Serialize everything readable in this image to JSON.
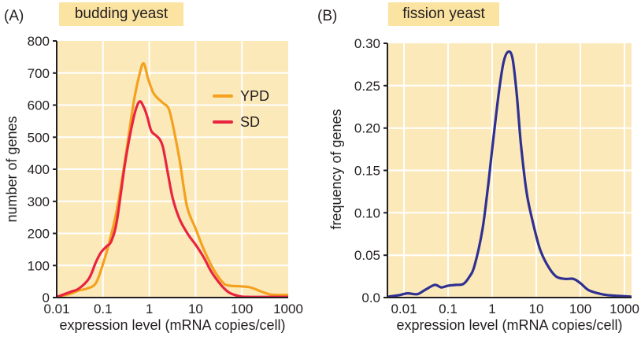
{
  "figure": {
    "panels": [
      {
        "letter": "(A)",
        "title": "budding yeast",
        "ylabel": "number of genes",
        "xlabel": "expression level (mRNA copies/cell)",
        "ytick_labels": [
          "800",
          "700",
          "600",
          "500",
          "400",
          "300",
          "200",
          "100",
          "0"
        ],
        "xtick_labels": [
          "0.01",
          "0.1",
          "1",
          "10",
          "100",
          "1000"
        ],
        "legend": [
          {
            "label": "YPD",
            "color": "#f4a11f"
          },
          {
            "label": "SD",
            "color": "#e82540"
          }
        ]
      },
      {
        "letter": "(B)",
        "title": "fission yeast",
        "ylabel": "frequency of genes",
        "xlabel": "expression level (mRNA copies/cell)",
        "ytick_labels": [
          "0.30",
          "0.25",
          "0.20",
          "0.15",
          "0.10",
          "0.05",
          "0.0"
        ],
        "xtick_labels": [
          "0.01",
          "0.1",
          "1",
          "10",
          "100",
          "1000"
        ]
      }
    ]
  },
  "colors": {
    "plot_bg": "#fce9ba",
    "title_bg": "#fbe3a1",
    "grid": "#ffffff",
    "axis": "#231f20",
    "text": "#231f20",
    "ypd": "#f4a11f",
    "sd": "#e82540",
    "fission": "#2f3192"
  },
  "chart_data": [
    {
      "type": "line",
      "title": "budding yeast",
      "xlabel": "expression level (mRNA copies/cell)",
      "ylabel": "number of genes",
      "x_scale": "log",
      "xlim": [
        0.01,
        1000
      ],
      "ylim": [
        0,
        800
      ],
      "yticks": [
        0,
        100,
        200,
        300,
        400,
        500,
        600,
        700,
        800
      ],
      "xticks": [
        0.01,
        0.1,
        1,
        10,
        100,
        1000
      ],
      "grid": true,
      "legend_position": "upper right",
      "series": [
        {
          "name": "YPD",
          "color": "#f4a11f",
          "points": [
            [
              0.01,
              2
            ],
            [
              0.02,
              12
            ],
            [
              0.03,
              22
            ],
            [
              0.045,
              28
            ],
            [
              0.07,
              45
            ],
            [
              0.1,
              105
            ],
            [
              0.14,
              178
            ],
            [
              0.2,
              275
            ],
            [
              0.3,
              430
            ],
            [
              0.45,
              600
            ],
            [
              0.6,
              690
            ],
            [
              0.75,
              730
            ],
            [
              0.95,
              680
            ],
            [
              1.2,
              640
            ],
            [
              1.5,
              622
            ],
            [
              2,
              606
            ],
            [
              2.6,
              590
            ],
            [
              3.2,
              540
            ],
            [
              4.5,
              430
            ],
            [
              6.5,
              285
            ],
            [
              10,
              215
            ],
            [
              15,
              150
            ],
            [
              25,
              85
            ],
            [
              40,
              45
            ],
            [
              55,
              37
            ],
            [
              90,
              35
            ],
            [
              150,
              32
            ],
            [
              250,
              20
            ],
            [
              400,
              10
            ],
            [
              600,
              8
            ],
            [
              1000,
              8
            ]
          ]
        },
        {
          "name": "SD",
          "color": "#e82540",
          "points": [
            [
              0.01,
              2
            ],
            [
              0.02,
              18
            ],
            [
              0.03,
              28
            ],
            [
              0.05,
              60
            ],
            [
              0.07,
              110
            ],
            [
              0.09,
              140
            ],
            [
              0.12,
              160
            ],
            [
              0.15,
              175
            ],
            [
              0.2,
              240
            ],
            [
              0.3,
              420
            ],
            [
              0.45,
              555
            ],
            [
              0.6,
              610
            ],
            [
              0.75,
              595
            ],
            [
              0.9,
              565
            ],
            [
              1.1,
              520
            ],
            [
              1.4,
              505
            ],
            [
              1.7,
              492
            ],
            [
              2,
              465
            ],
            [
              2.5,
              390
            ],
            [
              3.2,
              310
            ],
            [
              4.5,
              245
            ],
            [
              7,
              195
            ],
            [
              10,
              165
            ],
            [
              15,
              125
            ],
            [
              22,
              80
            ],
            [
              35,
              40
            ],
            [
              50,
              18
            ],
            [
              70,
              8
            ],
            [
              100,
              3
            ],
            [
              150,
              2
            ],
            [
              300,
              2
            ],
            [
              600,
              2
            ],
            [
              1000,
              2
            ]
          ]
        }
      ]
    },
    {
      "type": "line",
      "title": "fission yeast",
      "xlabel": "expression level (mRNA copies/cell)",
      "ylabel": "frequency of genes",
      "x_scale": "log",
      "xlim": [
        0.004,
        1450
      ],
      "ylim": [
        0,
        0.3
      ],
      "yticks": [
        0,
        0.05,
        0.1,
        0.15,
        0.2,
        0.25,
        0.3
      ],
      "xticks": [
        0.01,
        0.1,
        1,
        10,
        100,
        1000
      ],
      "grid": true,
      "legend_position": "none",
      "series": [
        {
          "name": "fission yeast",
          "color": "#2f3192",
          "points": [
            [
              0.0045,
              0.001
            ],
            [
              0.008,
              0.003
            ],
            [
              0.012,
              0.005
            ],
            [
              0.02,
              0.004
            ],
            [
              0.03,
              0.009
            ],
            [
              0.05,
              0.015
            ],
            [
              0.07,
              0.012
            ],
            [
              0.1,
              0.014
            ],
            [
              0.15,
              0.015
            ],
            [
              0.22,
              0.016
            ],
            [
              0.3,
              0.024
            ],
            [
              0.4,
              0.038
            ],
            [
              0.6,
              0.08
            ],
            [
              0.8,
              0.13
            ],
            [
              1,
              0.175
            ],
            [
              1.4,
              0.24
            ],
            [
              1.8,
              0.277
            ],
            [
              2.3,
              0.29
            ],
            [
              2.9,
              0.282
            ],
            [
              3.6,
              0.24
            ],
            [
              4.5,
              0.18
            ],
            [
              6,
              0.125
            ],
            [
              8,
              0.093
            ],
            [
              12,
              0.058
            ],
            [
              18,
              0.038
            ],
            [
              28,
              0.025
            ],
            [
              45,
              0.022
            ],
            [
              70,
              0.022
            ],
            [
              100,
              0.017
            ],
            [
              150,
              0.009
            ],
            [
              250,
              0.005
            ],
            [
              400,
              0.003
            ],
            [
              700,
              0.002
            ],
            [
              1400,
              0.001
            ]
          ]
        }
      ]
    }
  ]
}
